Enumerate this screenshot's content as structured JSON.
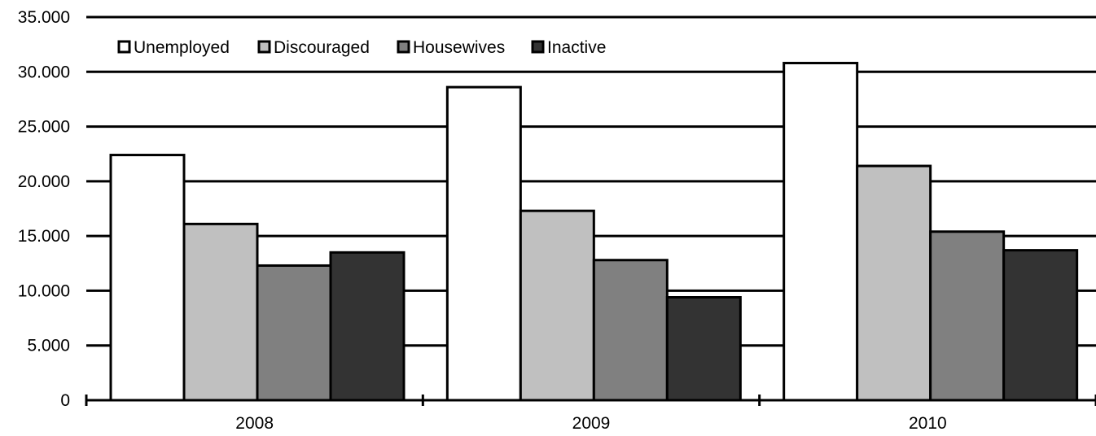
{
  "chart_data": {
    "type": "bar",
    "title": "",
    "xlabel": "",
    "ylabel": "",
    "categories": [
      "2008",
      "2009",
      "2010"
    ],
    "ylim": [
      0,
      35000
    ],
    "y_ticks": [
      0,
      5000,
      10000,
      15000,
      20000,
      25000,
      30000,
      35000
    ],
    "y_tick_labels": [
      "0",
      "5.000",
      "10.000",
      "15.000",
      "20.000",
      "25.000",
      "30.000",
      "35.000"
    ],
    "grid": true,
    "legend_position": "top-left",
    "series": [
      {
        "name": "Unemployed",
        "color": "#ffffff",
        "values": [
          22400,
          28600,
          30800
        ]
      },
      {
        "name": "Discouraged",
        "color": "#c0c0c0",
        "values": [
          16100,
          17300,
          21400
        ]
      },
      {
        "name": "Housewives",
        "color": "#808080",
        "values": [
          12300,
          12800,
          15400
        ]
      },
      {
        "name": "Inactive",
        "color": "#333333",
        "values": [
          13500,
          9400,
          13700
        ]
      }
    ]
  }
}
